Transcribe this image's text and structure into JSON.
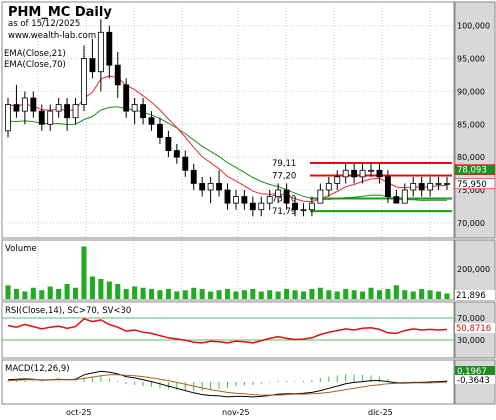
{
  "header": {
    "title": "PHM_MC Daily",
    "asof": "as of 15/12/2025",
    "site": "www.wealth-lab.com",
    "ema_fast": "EMA(Close,21)",
    "ema_slow": "EMA(Close,70)"
  },
  "price_panel": {
    "y_ticks": [
      "100,000",
      "95,000",
      "90,000",
      "85,000",
      "80,000",
      "75,000",
      "70,000"
    ],
    "y_values": [
      100,
      95,
      90,
      85,
      80,
      75,
      70
    ],
    "levels": [
      {
        "label": "79,11",
        "value": 79.11,
        "color": "#e01010"
      },
      {
        "label": "77,20",
        "value": 77.2,
        "color": "#e01010"
      },
      {
        "label": "73,70",
        "value": 73.7,
        "color": "#10a010"
      },
      {
        "label": "71,79",
        "value": 71.79,
        "color": "#10a010"
      }
    ],
    "tags": [
      {
        "label": "78,093",
        "value": 78.093,
        "bg": "#228b22",
        "fg": "#ffffff"
      },
      {
        "label": "75,950",
        "value": 75.95,
        "bg": "#ffffff",
        "fg": "#000000"
      }
    ]
  },
  "volume_panel": {
    "label": "Volume",
    "y_ticks": [
      "200,000"
    ],
    "tag": "21,896"
  },
  "rsi_panel": {
    "label": "RSI(Close,14), SC>70, SV<30",
    "y_ticks": [
      "70,000",
      "30,000"
    ],
    "tag": "50,8716"
  },
  "macd_panel": {
    "label": "MACD(12,26,9)",
    "tag1": "0,1967",
    "tag2": "-0,3643"
  },
  "x_axis": {
    "labels": [
      "oct-25",
      "nov-25",
      "dic-25"
    ]
  },
  "colors": {
    "grid": "#c8c8c8",
    "axis_bg": "#d8d8d8",
    "ema_fast": "#e03030",
    "ema_slow": "#228b22",
    "volume": "#22aa22",
    "rsi": "#dd1111",
    "macd_hist": "#44bb44"
  },
  "chart_data": {
    "type": "candlestick",
    "candles": [
      [
        84,
        89,
        83,
        88
      ],
      [
        88,
        91,
        86,
        87
      ],
      [
        87,
        90,
        85,
        89
      ],
      [
        89,
        90,
        86,
        87
      ],
      [
        87,
        88,
        84,
        85
      ],
      [
        85,
        88,
        84,
        87
      ],
      [
        87,
        89,
        86,
        88
      ],
      [
        88,
        89,
        84,
        86
      ],
      [
        86,
        89,
        85,
        88
      ],
      [
        88,
        97,
        87,
        95
      ],
      [
        95,
        98,
        92,
        93
      ],
      [
        93,
        101,
        90,
        99
      ],
      [
        99,
        100,
        92,
        94
      ],
      [
        94,
        96,
        89,
        91
      ],
      [
        91,
        92,
        86,
        87
      ],
      [
        87,
        89,
        85,
        88
      ],
      [
        88,
        89,
        85,
        86
      ],
      [
        86,
        87,
        84,
        85
      ],
      [
        85,
        86,
        82,
        83
      ],
      [
        83,
        84,
        80,
        81
      ],
      [
        81,
        82,
        79,
        80
      ],
      [
        80,
        81,
        77,
        78
      ],
      [
        78,
        79,
        75,
        76
      ],
      [
        76,
        77,
        74,
        75
      ],
      [
        75,
        77,
        73,
        76
      ],
      [
        76,
        78,
        74,
        75
      ],
      [
        75,
        76,
        72,
        73
      ],
      [
        73,
        75,
        72,
        74
      ],
      [
        74,
        75,
        72,
        73
      ],
      [
        73,
        74,
        71,
        72
      ],
      [
        72,
        74,
        71,
        73
      ],
      [
        73,
        75,
        72,
        74
      ],
      [
        74,
        76,
        73,
        75
      ],
      [
        75,
        76,
        72,
        73
      ],
      [
        73,
        74,
        71,
        72
      ],
      [
        72,
        73,
        71,
        72
      ],
      [
        72,
        74,
        71,
        73
      ],
      [
        73,
        76,
        73,
        75
      ],
      [
        75,
        77,
        74,
        76
      ],
      [
        76,
        78,
        75,
        77
      ],
      [
        77,
        79,
        76,
        78
      ],
      [
        78,
        79,
        76,
        77
      ],
      [
        77,
        79,
        76,
        78
      ],
      [
        78,
        79,
        77,
        78
      ],
      [
        78,
        79,
        76,
        77
      ],
      [
        77,
        78,
        73,
        74
      ],
      [
        74,
        75,
        73,
        73
      ],
      [
        73,
        76,
        73,
        75
      ],
      [
        75,
        77,
        74,
        76
      ],
      [
        76,
        77,
        74,
        75
      ],
      [
        75,
        77,
        74,
        76
      ],
      [
        76,
        77,
        75,
        76
      ],
      [
        76,
        77,
        75,
        76
      ]
    ],
    "volume": [
      55,
      40,
      30,
      45,
      35,
      50,
      40,
      60,
      45,
      210,
      90,
      80,
      70,
      60,
      40,
      50,
      45,
      40,
      35,
      40,
      30,
      35,
      45,
      40,
      30,
      35,
      40,
      30,
      35,
      40,
      30,
      35,
      30,
      40,
      35,
      30,
      40,
      45,
      35,
      30,
      40,
      35,
      30,
      45,
      35,
      40,
      55,
      35,
      30,
      40,
      35,
      30,
      22
    ],
    "rsi": [
      58,
      55,
      60,
      56,
      52,
      55,
      57,
      53,
      56,
      70,
      65,
      68,
      60,
      55,
      48,
      50,
      46,
      44,
      40,
      36,
      34,
      32,
      28,
      27,
      30,
      29,
      27,
      30,
      29,
      27,
      31,
      35,
      38,
      35,
      33,
      34,
      36,
      42,
      46,
      49,
      52,
      50,
      53,
      54,
      51,
      45,
      44,
      49,
      52,
      50,
      51,
      50,
      51
    ],
    "macd": [
      0.5,
      0.6,
      0.7,
      0.6,
      0.4,
      0.5,
      0.6,
      0.5,
      0.6,
      1.6,
      2.0,
      2.4,
      2.2,
      1.8,
      1.2,
      0.9,
      0.5,
      0.1,
      -0.4,
      -0.9,
      -1.4,
      -1.9,
      -2.4,
      -2.8,
      -3.0,
      -3.1,
      -3.3,
      -3.2,
      -3.2,
      -3.3,
      -3.2,
      -3.0,
      -2.7,
      -2.6,
      -2.6,
      -2.5,
      -2.3,
      -1.9,
      -1.4,
      -0.9,
      -0.4,
      -0.1,
      0.1,
      0.3,
      0.3,
      0.1,
      -0.2,
      -0.2,
      -0.1,
      -0.1,
      0.0,
      0.1,
      0.2
    ],
    "signal": [
      0.3,
      0.4,
      0.5,
      0.5,
      0.5,
      0.5,
      0.5,
      0.5,
      0.5,
      0.8,
      1.1,
      1.4,
      1.6,
      1.6,
      1.5,
      1.4,
      1.2,
      0.9,
      0.6,
      0.3,
      -0.1,
      -0.5,
      -0.9,
      -1.3,
      -1.7,
      -2.0,
      -2.3,
      -2.5,
      -2.6,
      -2.8,
      -2.9,
      -2.9,
      -2.9,
      -2.8,
      -2.7,
      -2.7,
      -2.6,
      -2.5,
      -2.3,
      -2.0,
      -1.7,
      -1.4,
      -1.1,
      -0.8,
      -0.6,
      -0.4,
      -0.3,
      -0.3,
      -0.2,
      -0.2,
      -0.2,
      -0.1,
      -0.05
    ],
    "ymin": 68,
    "ymax": 103
  }
}
